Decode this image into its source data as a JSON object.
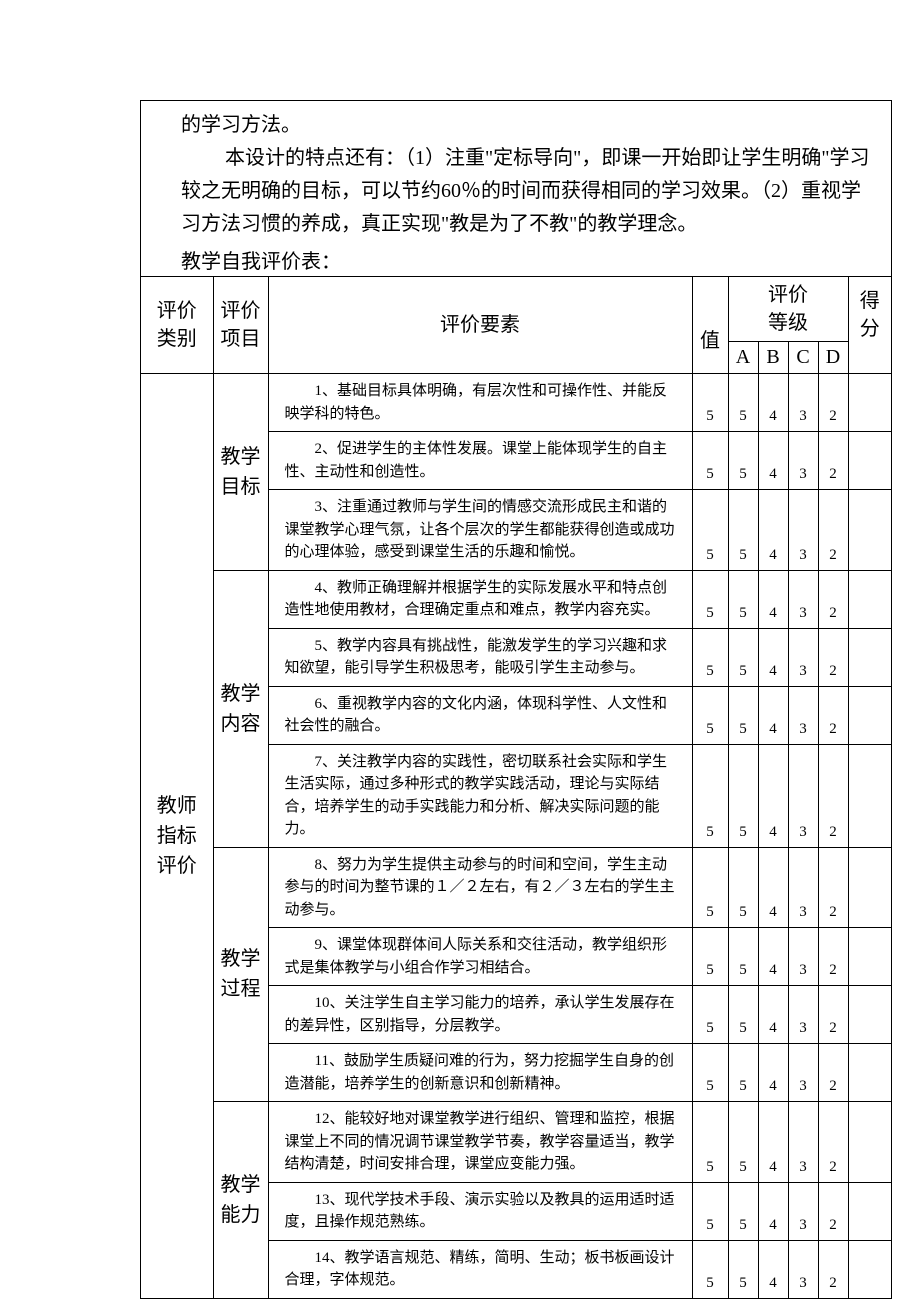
{
  "intro": {
    "line1": "的学习方法。",
    "para2": "本设计的特点还有：（1）注重\"定标导向\"，即课一开始即让学生明确\"学习较之无明确的目标，可以节约60％的时间而获得相同的学习效果。（2）重视学习方法习惯的养成，真正实现\"教是为了不教\"的教学理念。",
    "table_label": "教学自我评价表："
  },
  "headers": {
    "category": "评价\n类别",
    "item": "评价\n项目",
    "element": "评价要素",
    "value": "值",
    "grade_level": "评价\n等级",
    "score": "得分",
    "A": "A",
    "B": "B",
    "C": "C",
    "D": "D"
  },
  "category_label": "教师\n指标评价",
  "sections": [
    {
      "label": "教学\n目标",
      "rows": [
        {
          "text": "1、基础目标具体明确，有层次性和可操作性、并能反映学科的特色。",
          "val": 5,
          "A": 5,
          "B": 4,
          "C": 3,
          "D": 2
        },
        {
          "text": "2、促进学生的主体性发展。课堂上能体现学生的自主性、主动性和创造性。",
          "val": 5,
          "A": 5,
          "B": 4,
          "C": 3,
          "D": 2
        },
        {
          "text": "3、注重通过教师与学生间的情感交流形成民主和谐的课堂教学心理气氛，让各个层次的学生都能获得创造或成功的心理体验，感受到课堂生活的乐趣和愉悦。",
          "val": 5,
          "A": 5,
          "B": 4,
          "C": 3,
          "D": 2
        }
      ]
    },
    {
      "label": "教学\n内容",
      "rows": [
        {
          "text": "4、教师正确理解并根据学生的实际发展水平和特点创造性地使用教材，合理确定重点和难点，教学内容充实。",
          "val": 5,
          "A": 5,
          "B": 4,
          "C": 3,
          "D": 2
        },
        {
          "text": "5、教学内容具有挑战性，能激发学生的学习兴趣和求知欲望，能引导学生积极思考，能吸引学生主动参与。",
          "val": 5,
          "A": 5,
          "B": 4,
          "C": 3,
          "D": 2
        },
        {
          "text": "6、重视教学内容的文化内涵，体现科学性、人文性和社会性的融合。",
          "val": 5,
          "A": 5,
          "B": 4,
          "C": 3,
          "D": 2
        },
        {
          "text": "7、关注教学内容的实践性，密切联系社会实际和学生生活实际，通过多种形式的教学实践活动，理论与实际结合，培养学生的动手实践能力和分析、解决实际问题的能力。",
          "val": 5,
          "A": 5,
          "B": 4,
          "C": 3,
          "D": 2
        }
      ]
    },
    {
      "label": "教学\n过程",
      "rows": [
        {
          "text": "8、努力为学生提供主动参与的时间和空间，学生主动参与的时间为整节课的１／２左右，有２／３左右的学生主动参与。",
          "val": 5,
          "A": 5,
          "B": 4,
          "C": 3,
          "D": 2
        },
        {
          "text": "9、课堂体现群体间人际关系和交往活动，教学组织形式是集体教学与小组合作学习相结合。",
          "val": 5,
          "A": 5,
          "B": 4,
          "C": 3,
          "D": 2
        },
        {
          "text": "10、关注学生自主学习能力的培养，承认学生发展存在的差异性，区别指导，分层教学。",
          "val": 5,
          "A": 5,
          "B": 4,
          "C": 3,
          "D": 2
        },
        {
          "text": "11、鼓励学生质疑问难的行为，努力挖掘学生自身的创造潜能，培养学生的创新意识和创新精神。",
          "val": 5,
          "A": 5,
          "B": 4,
          "C": 3,
          "D": 2
        }
      ]
    },
    {
      "label": "教学\n能力",
      "rows": [
        {
          "text": "12、能较好地对课堂教学进行组织、管理和监控，根据课堂上不同的情况调节课堂教学节奏，教学容量适当，教学结构清楚，时间安排合理，课堂应变能力强。",
          "val": 5,
          "A": 5,
          "B": 4,
          "C": 3,
          "D": 2
        },
        {
          "text": "13、现代学技术手段、演示实验以及教具的运用适时适度，且操作规范熟练。",
          "val": 5,
          "A": 5,
          "B": 4,
          "C": 3,
          "D": 2
        },
        {
          "text": "14、教学语言规范、精练，简明、生动；板书板画设计合理，字体规范。",
          "val": 5,
          "A": 5,
          "B": 4,
          "C": 3,
          "D": 2
        }
      ]
    }
  ],
  "colors": {
    "text": "#000000",
    "bg": "#ffffff",
    "border": "#000000"
  }
}
